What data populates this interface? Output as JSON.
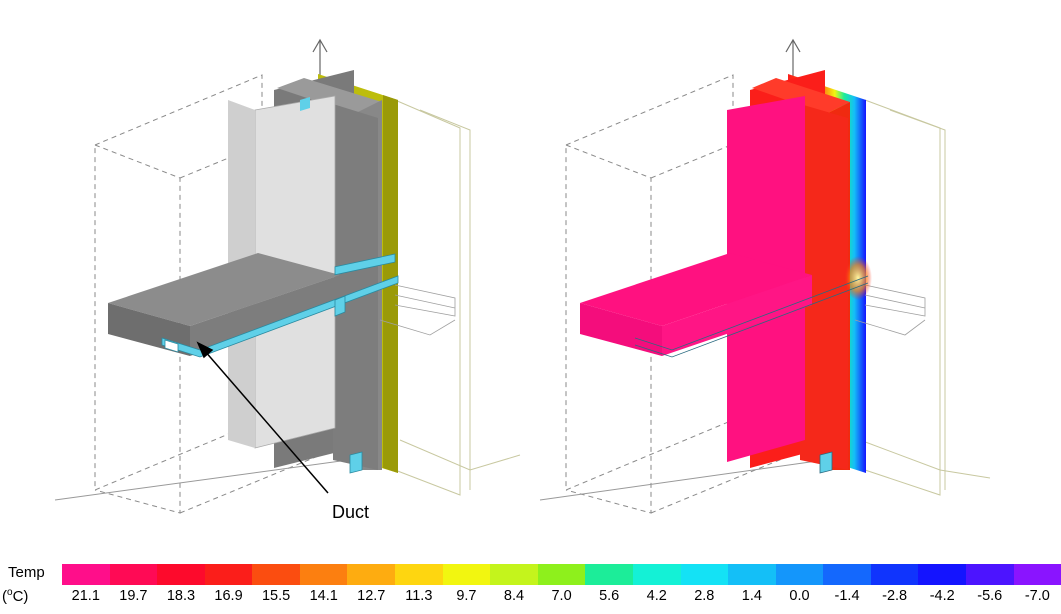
{
  "annotation": {
    "duct_label": "Duct"
  },
  "legend": {
    "title": "Temp",
    "unit_prefix": "(",
    "unit_degree": "o",
    "unit_suffix": "C)",
    "entries": [
      {
        "value": "21.1",
        "color": "#ff0e8a"
      },
      {
        "value": "19.7",
        "color": "#ff0a55"
      },
      {
        "value": "18.3",
        "color": "#fd0a2c"
      },
      {
        "value": "16.9",
        "color": "#fb1e1a"
      },
      {
        "value": "15.5",
        "color": "#fb4d10"
      },
      {
        "value": "14.1",
        "color": "#fc7f10"
      },
      {
        "value": "12.7",
        "color": "#feac10"
      },
      {
        "value": "11.3",
        "color": "#fed610"
      },
      {
        "value": "9.7",
        "color": "#f2f610"
      },
      {
        "value": "8.4",
        "color": "#c4f41c"
      },
      {
        "value": "7.0",
        "color": "#8ef01c"
      },
      {
        "value": "5.6",
        "color": "#1ced99"
      },
      {
        "value": "4.2",
        "color": "#14f1d6"
      },
      {
        "value": "2.8",
        "color": "#14e2f5"
      },
      {
        "value": "1.4",
        "color": "#14bff7"
      },
      {
        "value": "0.0",
        "color": "#1496fb"
      },
      {
        "value": "-1.4",
        "color": "#1468fd"
      },
      {
        "value": "-2.8",
        "color": "#1034fd"
      },
      {
        "value": "-4.2",
        "color": "#1414ff"
      },
      {
        "value": "-5.6",
        "color": "#4c14ff"
      },
      {
        "value": "-7.0",
        "color": "#8a14ff"
      }
    ]
  },
  "colors": {
    "slab_gray": "#8c8c8c",
    "slab_gray_side": "#6e6e6e",
    "panel_light": "#e0e0e0",
    "insulation": "#bdbd0c",
    "duct": "#5fd0e8",
    "hot_magenta": "#ff1180",
    "hot_red": "#fb1e1a"
  }
}
